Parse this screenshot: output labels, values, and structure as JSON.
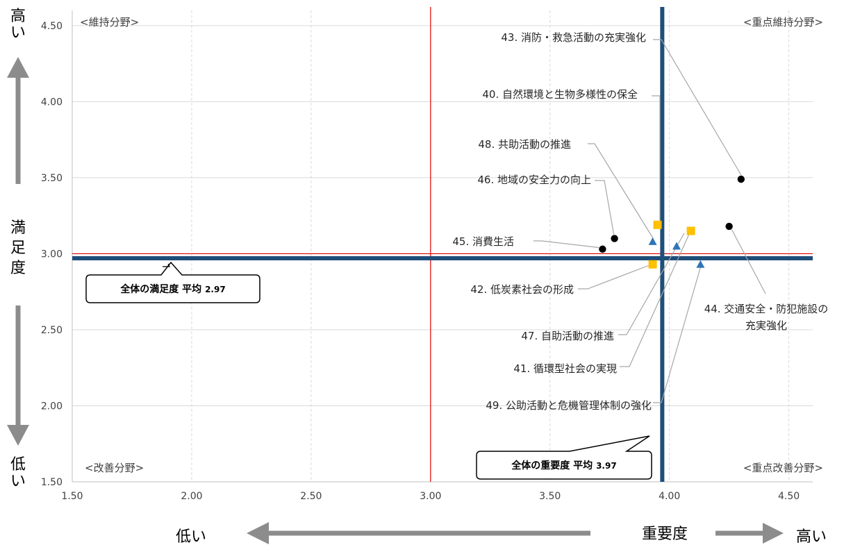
{
  "chart_data": {
    "type": "scatter",
    "xlim": [
      1.5,
      4.6
    ],
    "ylim": [
      1.5,
      4.6
    ],
    "x_ticks": [
      "1.50",
      "2.00",
      "2.50",
      "3.00",
      "3.50",
      "4.00",
      "4.50"
    ],
    "y_ticks": [
      "1.50",
      "2.00",
      "2.50",
      "3.00",
      "3.50",
      "4.00",
      "4.50"
    ],
    "grid": true,
    "reference_lines": {
      "x": 3.0,
      "y": 3.0,
      "avg_importance": 3.97,
      "avg_satisfaction": 2.97
    },
    "quadrants": {
      "top_left": "<維持分野>",
      "top_right": "<重点維持分野>",
      "bottom_left": "<改善分野>",
      "bottom_right": "<重点改善分野>"
    },
    "x_axis_caption": {
      "low": "低い",
      "label": "重要度",
      "high": "高い"
    },
    "y_axis_caption": {
      "high": "高い",
      "label": "満足度",
      "low": "低い"
    },
    "callouts": {
      "satisfaction": {
        "label": "全体の満足度 平均",
        "value": "2.97"
      },
      "importance": {
        "label": "全体の重要度 平均",
        "value": "3.97"
      }
    },
    "points": [
      {
        "id": "43",
        "label": "43. 消防・救急活動の充実強化",
        "x": 4.3,
        "y": 3.49,
        "marker": "circle"
      },
      {
        "id": "40",
        "label": "40. 自然環境と生物多様性の保全",
        "x": 3.95,
        "y": 3.19,
        "marker": "square"
      },
      {
        "id": "48",
        "label": "48. 共助活動の推進",
        "x": 3.93,
        "y": 3.08,
        "marker": "triangle"
      },
      {
        "id": "46",
        "label": "46. 地域の安全力の向上",
        "x": 3.77,
        "y": 3.1,
        "marker": "circle"
      },
      {
        "id": "45",
        "label": "45. 消費生活",
        "x": 3.72,
        "y": 3.03,
        "marker": "circle"
      },
      {
        "id": "42",
        "label": "42. 低炭素社会の形成",
        "x": 3.93,
        "y": 2.93,
        "marker": "square"
      },
      {
        "id": "47",
        "label": "47. 自助活動の推進",
        "x": 4.03,
        "y": 3.05,
        "marker": "triangle"
      },
      {
        "id": "41",
        "label": "41. 循環型社会の実現",
        "x": 4.09,
        "y": 3.15,
        "marker": "square"
      },
      {
        "id": "49",
        "label": "49. 公助活動と危機管理体制の強化",
        "x": 4.13,
        "y": 2.93,
        "marker": "triangle"
      },
      {
        "id": "44",
        "label": "44. 交通安全・防犯施設の\n充実強化",
        "x": 4.25,
        "y": 3.18,
        "marker": "circle"
      }
    ],
    "colors": {
      "circle": "#000000",
      "square": "#FFC000",
      "triangle": "#2E75B6",
      "avg_line": "#1F4E79",
      "ref_line": "#E00000",
      "grid": "#D9D9D9",
      "arrow": "#8C8C8C"
    }
  }
}
